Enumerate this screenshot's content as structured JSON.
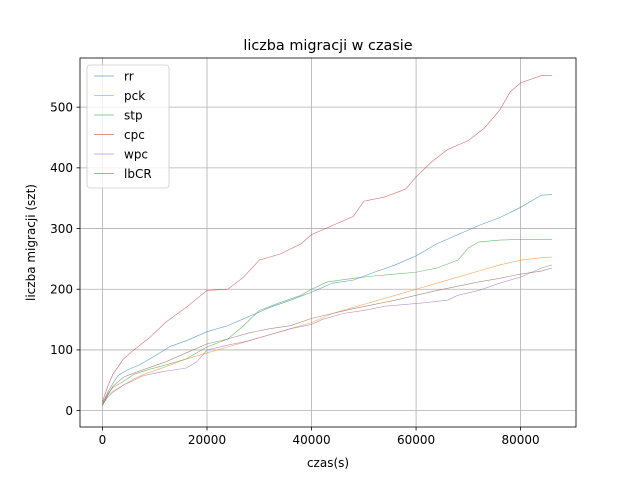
{
  "chart_data": {
    "type": "line",
    "title": "liczba migracji w czasie",
    "xlabel": "czas(s)",
    "ylabel": "liczba migracji (szt)",
    "xlim": [
      -4300,
      90600
    ],
    "ylim": [
      -27,
      581
    ],
    "xticks": [
      0,
      20000,
      40000,
      60000,
      80000
    ],
    "yticks": [
      0,
      100,
      200,
      300,
      400,
      500
    ],
    "grid": true,
    "legend": "top-left",
    "series": [
      {
        "name": "rr",
        "color": "#1f77b4",
        "x": [
          0,
          1000,
          2000,
          3000,
          5000,
          7000,
          10000,
          13000,
          16000,
          20000,
          24000,
          28000,
          32000,
          36000,
          40000,
          44000,
          48000,
          52000,
          56000,
          60000,
          64000,
          68000,
          72000,
          76000,
          80000,
          84000,
          86000
        ],
        "y": [
          12,
          30,
          45,
          58,
          68,
          75,
          90,
          106,
          115,
          130,
          140,
          155,
          170,
          182,
          195,
          210,
          215,
          228,
          240,
          255,
          275,
          290,
          305,
          318,
          335,
          355,
          356
        ]
      },
      {
        "name": "pck",
        "color": "#ff7f0e",
        "x": [
          0,
          1000,
          2000,
          4000,
          6000,
          8000,
          12000,
          16000,
          20000,
          24000,
          28000,
          32000,
          36000,
          40000,
          44000,
          48000,
          52000,
          56000,
          60000,
          64000,
          68000,
          72000,
          76000,
          80000,
          84000,
          86000
        ],
        "y": [
          15,
          25,
          32,
          42,
          52,
          60,
          72,
          85,
          95,
          105,
          115,
          125,
          135,
          145,
          160,
          170,
          180,
          190,
          200,
          210,
          220,
          230,
          240,
          248,
          252,
          253
        ]
      },
      {
        "name": "stp",
        "color": "#2ca02c",
        "x": [
          0,
          1000,
          2000,
          4000,
          6000,
          9000,
          12000,
          16000,
          20000,
          24000,
          27000,
          30000,
          34000,
          38000,
          40000,
          43000,
          48000,
          52000,
          56000,
          60000,
          64000,
          68000,
          70000,
          72000,
          76000,
          80000,
          84000,
          86000
        ],
        "y": [
          10,
          28,
          38,
          48,
          60,
          68,
          75,
          85,
          105,
          118,
          140,
          165,
          178,
          190,
          200,
          212,
          218,
          222,
          225,
          228,
          235,
          248,
          268,
          278,
          281,
          282,
          282,
          282
        ]
      },
      {
        "name": "cpc",
        "color": "#d62728",
        "x": [
          0,
          1000,
          2000,
          4000,
          6000,
          9000,
          12000,
          16000,
          20000,
          24000,
          27000,
          30000,
          34000,
          38000,
          40000,
          44000,
          48000,
          50000,
          54000,
          58000,
          60000,
          63000,
          66000,
          70000,
          73000,
          76000,
          78000,
          80000,
          84000,
          86000
        ],
        "y": [
          15,
          40,
          60,
          85,
          100,
          120,
          145,
          170,
          198,
          200,
          220,
          248,
          258,
          275,
          290,
          305,
          320,
          345,
          352,
          365,
          385,
          410,
          430,
          445,
          465,
          495,
          525,
          540,
          552,
          552
        ]
      },
      {
        "name": "wpc",
        "color": "#9467bd",
        "x": [
          0,
          1000,
          2000,
          4000,
          6000,
          8000,
          12000,
          16000,
          18000,
          20000,
          24000,
          28000,
          32000,
          36000,
          40000,
          42000,
          46000,
          50000,
          54000,
          58000,
          62000,
          66000,
          68000,
          72000,
          76000,
          80000,
          84000,
          86000
        ],
        "y": [
          10,
          22,
          30,
          42,
          50,
          58,
          65,
          70,
          80,
          100,
          108,
          115,
          125,
          135,
          142,
          150,
          160,
          165,
          172,
          175,
          178,
          182,
          190,
          198,
          210,
          220,
          235,
          240
        ]
      },
      {
        "name": "lbCR",
        "color": "#8c564b",
        "x": [
          0,
          1000,
          2000,
          4000,
          6000,
          8000,
          12000,
          16000,
          20000,
          24000,
          28000,
          32000,
          36000,
          40000,
          44000,
          48000,
          52000,
          56000,
          60000,
          64000,
          68000,
          72000,
          76000,
          80000,
          84000,
          86000
        ],
        "y": [
          8,
          25,
          40,
          55,
          62,
          68,
          80,
          95,
          110,
          118,
          128,
          135,
          140,
          152,
          160,
          168,
          175,
          182,
          190,
          198,
          205,
          212,
          218,
          225,
          230,
          235
        ]
      }
    ]
  }
}
